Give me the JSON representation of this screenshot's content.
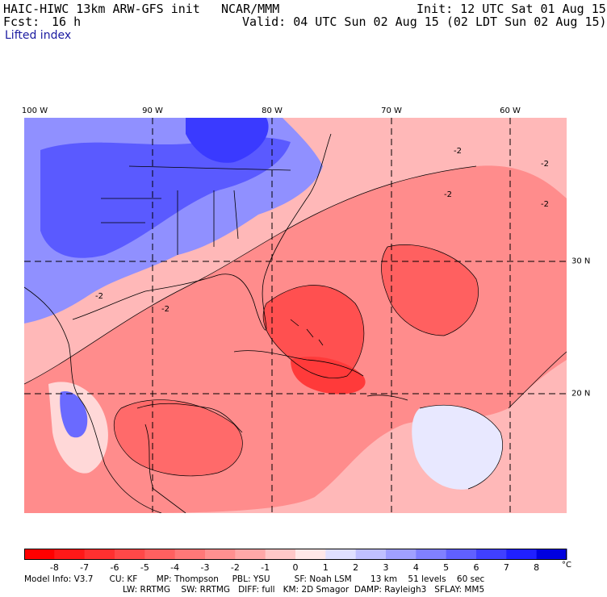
{
  "header": {
    "model_title": "HAIC-HIWC 13km ARW-GFS init",
    "center": "NCAR/MMM",
    "init": "Init: 12 UTC Sat 01 Aug 15",
    "fcst_label": "Fcst:",
    "fcst_value": "16 h",
    "valid": "Valid: 04 UTC Sun 02 Aug 15 (02 LDT Sun 02 Aug 15)",
    "field": "Lifted index"
  },
  "map": {
    "lon_labels": [
      "100 W",
      "90 W",
      "80 W",
      "70 W",
      "60 W"
    ],
    "lat_labels": [
      "30 N",
      "20 N"
    ],
    "contour_label": "-2",
    "colors": {
      "strong_negative": "#ff0000",
      "negative": "#ff7070",
      "weak_negative": "#ffc0c0",
      "neutral": "#ffffff",
      "weak_positive": "#c8c8ff",
      "positive": "#6464ff",
      "strong_positive": "#0000e0"
    }
  },
  "colorbar": {
    "ticks": [
      "-8",
      "-7",
      "-6",
      "-5",
      "-4",
      "-3",
      "-2",
      "-1",
      "0",
      "1",
      "2",
      "3",
      "4",
      "5",
      "6",
      "7",
      "8"
    ],
    "unit": "°C",
    "colors": [
      "#ff0000",
      "#ff1818",
      "#ff3030",
      "#ff4848",
      "#ff6060",
      "#ff7878",
      "#ff9090",
      "#ffa8a8",
      "#ffc8c8",
      "#ffe8e8",
      "#e0e0ff",
      "#c0c0ff",
      "#a0a0ff",
      "#8080ff",
      "#6060ff",
      "#4040ff",
      "#2020ff",
      "#0000e0"
    ]
  },
  "model_info": {
    "line1": "Model Info: V3.7      CU: KF       MP: Thompson     PBL: YSU         SF: Noah LSM       13 km    51 levels    60 sec",
    "line2": "LW: RRTMG    SW: RRTMG   DIFF: full   KM: 2D Smagor  DAMP: Rayleigh3   SFLAY: MM5"
  }
}
